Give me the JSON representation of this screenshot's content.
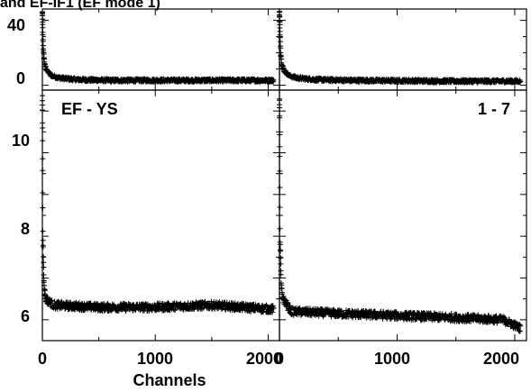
{
  "chart_data": {
    "type": "scatter",
    "title_fragment": "and EF-IF1 (EF mode 1)",
    "xlabel": "Channels",
    "x_tick_labels": [
      "0",
      "1000",
      "2000"
    ],
    "x_range": [
      0,
      2100
    ],
    "marker": "plus",
    "panels": [
      {
        "position": "top-left",
        "ylim": [
          -3,
          47
        ],
        "y_ticks": [
          0,
          40
        ],
        "y_tick_labels": [
          "0",
          "40"
        ],
        "approx_series": [
          {
            "x": 0,
            "y": 45
          },
          {
            "x": 5,
            "y": 30
          },
          {
            "x": 10,
            "y": 20
          },
          {
            "x": 20,
            "y": 13
          },
          {
            "x": 40,
            "y": 9
          },
          {
            "x": 80,
            "y": 6
          },
          {
            "x": 150,
            "y": 4.5
          },
          {
            "x": 300,
            "y": 3.5
          },
          {
            "x": 600,
            "y": 3
          },
          {
            "x": 1000,
            "y": 3
          },
          {
            "x": 1500,
            "y": 3
          },
          {
            "x": 2048,
            "y": 3
          }
        ]
      },
      {
        "position": "top-right",
        "ylim": [
          -3,
          47
        ],
        "y_ticks": [
          0,
          40
        ],
        "approx_series": [
          {
            "x": 0,
            "y": 45
          },
          {
            "x": 5,
            "y": 30
          },
          {
            "x": 10,
            "y": 20
          },
          {
            "x": 20,
            "y": 13
          },
          {
            "x": 40,
            "y": 9
          },
          {
            "x": 80,
            "y": 6
          },
          {
            "x": 150,
            "y": 4.5
          },
          {
            "x": 300,
            "y": 3.5
          },
          {
            "x": 600,
            "y": 3
          },
          {
            "x": 1000,
            "y": 2.8
          },
          {
            "x": 1500,
            "y": 2.5
          },
          {
            "x": 2048,
            "y": 2.5
          }
        ]
      },
      {
        "position": "bottom-left",
        "label": "EF - YS",
        "ylim": [
          5.5,
          11.5
        ],
        "y_ticks": [
          6,
          8,
          10
        ],
        "y_tick_labels": [
          "6",
          "8",
          "10"
        ],
        "approx_series": [
          {
            "x": 0,
            "y": 11.3
          },
          {
            "x": 5,
            "y": 8
          },
          {
            "x": 15,
            "y": 6.8
          },
          {
            "x": 30,
            "y": 6.5
          },
          {
            "x": 100,
            "y": 6.35
          },
          {
            "x": 500,
            "y": 6.3
          },
          {
            "x": 1000,
            "y": 6.3
          },
          {
            "x": 1500,
            "y": 6.35
          },
          {
            "x": 2048,
            "y": 6.25
          }
        ]
      },
      {
        "position": "bottom-right",
        "label": "1 - 7",
        "ylim": [
          5.5,
          11.5
        ],
        "y_ticks": [
          6,
          8,
          10
        ],
        "approx_series": [
          {
            "x": 0,
            "y": 11.3
          },
          {
            "x": 5,
            "y": 8
          },
          {
            "x": 15,
            "y": 6.8
          },
          {
            "x": 30,
            "y": 6.5
          },
          {
            "x": 100,
            "y": 6.2
          },
          {
            "x": 500,
            "y": 6.15
          },
          {
            "x": 1000,
            "y": 6.1
          },
          {
            "x": 1500,
            "y": 6.05
          },
          {
            "x": 1900,
            "y": 6.0
          },
          {
            "x": 2048,
            "y": 5.8
          }
        ]
      }
    ]
  }
}
